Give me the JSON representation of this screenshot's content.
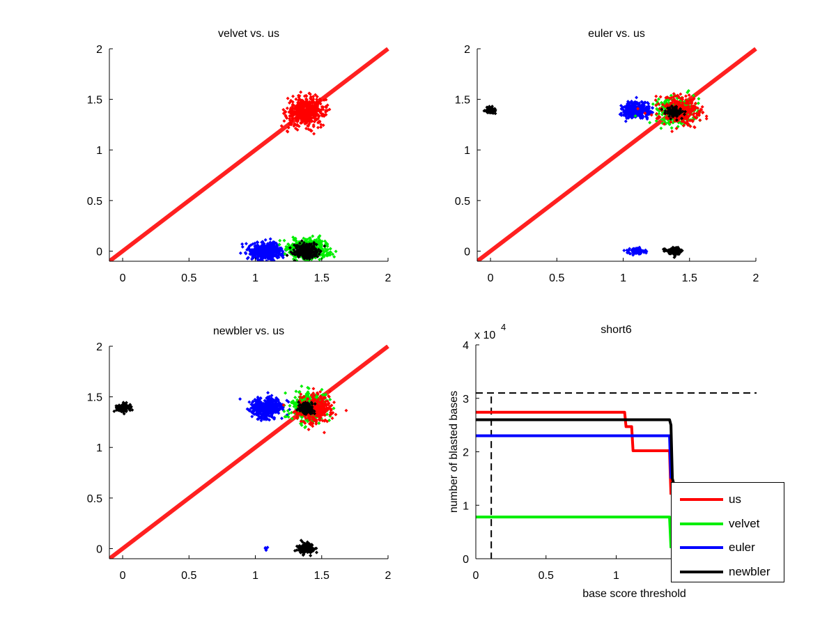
{
  "chart_data": [
    {
      "type": "scatter",
      "title": "velvet vs. us",
      "xlim": [
        -0.1,
        2
      ],
      "ylim": [
        -0.1,
        2
      ],
      "xticks": [
        "0",
        "0.5",
        "1",
        "1.5",
        "2"
      ],
      "yticks": [
        "0",
        "0.5",
        "1",
        "1.5",
        "2"
      ],
      "diagonal": {
        "from": [
          -0.1,
          -0.1
        ],
        "to": [
          2,
          2
        ],
        "color": "#ff2020"
      },
      "clusters": [
        {
          "color": "#ff0000",
          "center": [
            1.38,
            1.38
          ],
          "spread": [
            0.07,
            0.07
          ],
          "count": 500
        },
        {
          "color": "#0000ff",
          "center": [
            1.08,
            0.0
          ],
          "spread": [
            0.06,
            0.045
          ],
          "count": 450
        },
        {
          "color": "#00ee00",
          "center": [
            1.4,
            0.02
          ],
          "spread": [
            0.08,
            0.05
          ],
          "count": 450
        },
        {
          "color": "#000000",
          "center": [
            1.38,
            0.0
          ],
          "spread": [
            0.045,
            0.035
          ],
          "count": 300
        }
      ]
    },
    {
      "type": "scatter",
      "title": "euler vs. us",
      "xlim": [
        -0.1,
        2
      ],
      "ylim": [
        -0.1,
        2
      ],
      "xticks": [
        "0",
        "0.5",
        "1",
        "1.5",
        "2"
      ],
      "yticks": [
        "0",
        "0.5",
        "1",
        "1.5",
        "2"
      ],
      "diagonal": {
        "from": [
          -0.1,
          -0.1
        ],
        "to": [
          2,
          2
        ],
        "color": "#ff2020"
      },
      "clusters": [
        {
          "color": "#000000",
          "center": [
            0.0,
            1.39
          ],
          "spread": [
            0.02,
            0.015
          ],
          "count": 80
        },
        {
          "color": "#0000ff",
          "center": [
            1.1,
            1.39
          ],
          "spread": [
            0.05,
            0.04
          ],
          "count": 350
        },
        {
          "color": "#00ee00",
          "center": [
            1.4,
            1.39
          ],
          "spread": [
            0.07,
            0.06
          ],
          "count": 400
        },
        {
          "color": "#ff0000",
          "center": [
            1.43,
            1.38
          ],
          "spread": [
            0.08,
            0.07
          ],
          "count": 300
        },
        {
          "color": "#000000",
          "center": [
            1.38,
            1.38
          ],
          "spread": [
            0.03,
            0.025
          ],
          "count": 120
        },
        {
          "color": "#0000ff",
          "center": [
            1.1,
            0.0
          ],
          "spread": [
            0.03,
            0.015
          ],
          "count": 100
        },
        {
          "color": "#000000",
          "center": [
            1.38,
            0.0
          ],
          "spread": [
            0.03,
            0.02
          ],
          "count": 120
        }
      ]
    },
    {
      "type": "scatter",
      "title": "newbler vs. us",
      "xlim": [
        -0.1,
        2
      ],
      "ylim": [
        -0.1,
        2
      ],
      "xticks": [
        "0",
        "0.5",
        "1",
        "1.5",
        "2"
      ],
      "yticks": [
        "0",
        "0.5",
        "1",
        "1.5",
        "2"
      ],
      "diagonal": {
        "from": [
          -0.1,
          -0.1
        ],
        "to": [
          2,
          2
        ],
        "color": "#ff2020"
      },
      "clusters": [
        {
          "color": "#000000",
          "center": [
            0.0,
            1.39
          ],
          "spread": [
            0.025,
            0.02
          ],
          "count": 100
        },
        {
          "color": "#0000ff",
          "center": [
            1.08,
            1.39
          ],
          "spread": [
            0.06,
            0.05
          ],
          "count": 450
        },
        {
          "color": "#00ee00",
          "center": [
            1.4,
            1.4
          ],
          "spread": [
            0.07,
            0.07
          ],
          "count": 400
        },
        {
          "color": "#ff0000",
          "center": [
            1.45,
            1.38
          ],
          "spread": [
            0.07,
            0.07
          ],
          "count": 300
        },
        {
          "color": "#000000",
          "center": [
            1.38,
            1.38
          ],
          "spread": [
            0.03,
            0.03
          ],
          "count": 120
        },
        {
          "color": "#0000ff",
          "center": [
            1.07,
            0.0
          ],
          "spread": [
            0.02,
            0.01
          ],
          "count": 5
        },
        {
          "color": "#000000",
          "center": [
            1.38,
            0.0
          ],
          "spread": [
            0.03,
            0.025
          ],
          "count": 150
        }
      ]
    },
    {
      "type": "line",
      "title": "short6",
      "xlabel": "base score threshold",
      "ylabel": "number of blasted bases",
      "y_multiplier": "x 10",
      "y_exponent": "4",
      "xlim": [
        0,
        2
      ],
      "ylim": [
        0,
        4
      ],
      "xticks": [
        "0",
        "0.5",
        "1"
      ],
      "yticks": [
        "0",
        "1",
        "2",
        "3",
        "4"
      ],
      "reference_lines": {
        "horizontal_dashed_y": 3.1,
        "vertical_dashed_x": 0.11
      },
      "series": [
        {
          "name": "us",
          "color": "#ff0000",
          "points": [
            [
              0,
              2.74
            ],
            [
              1.06,
              2.74
            ],
            [
              1.07,
              2.47
            ],
            [
              1.11,
              2.47
            ],
            [
              1.12,
              2.02
            ],
            [
              1.38,
              2.02
            ],
            [
              1.385,
              1.6
            ],
            [
              1.39,
              1.2
            ]
          ]
        },
        {
          "name": "velvet",
          "color": "#00ee00",
          "points": [
            [
              0,
              0.78
            ],
            [
              1.38,
              0.78
            ],
            [
              1.385,
              0.5
            ],
            [
              1.39,
              0.2
            ]
          ]
        },
        {
          "name": "euler",
          "color": "#0000ff",
          "points": [
            [
              0,
              2.3
            ],
            [
              1.38,
              2.3
            ],
            [
              1.39,
              1.5
            ]
          ]
        },
        {
          "name": "newbler",
          "color": "#000000",
          "points": [
            [
              0,
              2.6
            ],
            [
              1.38,
              2.6
            ],
            [
              1.39,
              2.5
            ],
            [
              1.4,
              1.5
            ],
            [
              1.41,
              1.4
            ]
          ]
        }
      ],
      "legend": {
        "placement": "bottom-right",
        "entries": [
          "us",
          "velvet",
          "euler",
          "newbler"
        ]
      }
    }
  ]
}
